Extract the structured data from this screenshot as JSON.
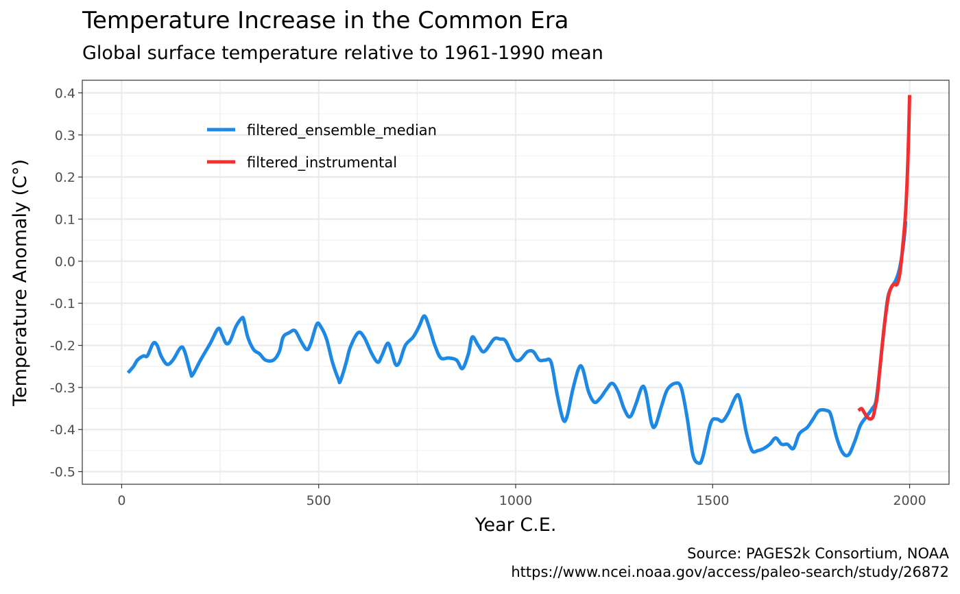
{
  "chart_data": {
    "type": "line",
    "title": "Temperature Increase in the Common Era",
    "subtitle": "Global surface temperature relative to 1961-1990 mean",
    "xlabel": "Year C.E.",
    "ylabel": "Temperature Anomaly (C°)",
    "caption_line1": "Source: PAGES2k Consortium, NOAA",
    "caption_line2": "https://www.ncei.noaa.gov/access/paleo-search/study/26872",
    "xlim": [
      -100,
      2100
    ],
    "ylim": [
      -0.53,
      0.43
    ],
    "x_ticks": [
      0,
      500,
      1000,
      1500,
      2000
    ],
    "x_tick_labels": [
      "0",
      "500",
      "1000",
      "1500",
      "2000"
    ],
    "y_ticks": [
      0.4,
      0.3,
      0.2,
      0.1,
      0.0,
      -0.1,
      -0.2,
      -0.3,
      -0.4,
      -0.5
    ],
    "y_tick_labels": [
      "0.4",
      "0.3",
      "0.2",
      "0.1",
      "0.0",
      "-0.1",
      "-0.2",
      "-0.3",
      "-0.4",
      "-0.5"
    ],
    "grid": true,
    "legend_position": "top-left inside",
    "series": [
      {
        "name": "filtered_ensemble_median",
        "color": "#1e88e5",
        "points": [
          [
            16,
            -0.265
          ],
          [
            30,
            -0.25
          ],
          [
            40,
            -0.235
          ],
          [
            55,
            -0.225
          ],
          [
            65,
            -0.225
          ],
          [
            80,
            -0.195
          ],
          [
            90,
            -0.2
          ],
          [
            100,
            -0.225
          ],
          [
            115,
            -0.245
          ],
          [
            130,
            -0.235
          ],
          [
            150,
            -0.205
          ],
          [
            160,
            -0.215
          ],
          [
            175,
            -0.265
          ],
          [
            180,
            -0.27
          ],
          [
            200,
            -0.235
          ],
          [
            225,
            -0.195
          ],
          [
            245,
            -0.16
          ],
          [
            255,
            -0.175
          ],
          [
            265,
            -0.195
          ],
          [
            275,
            -0.19
          ],
          [
            290,
            -0.155
          ],
          [
            305,
            -0.135
          ],
          [
            310,
            -0.14
          ],
          [
            320,
            -0.18
          ],
          [
            335,
            -0.21
          ],
          [
            350,
            -0.22
          ],
          [
            365,
            -0.235
          ],
          [
            385,
            -0.235
          ],
          [
            400,
            -0.215
          ],
          [
            410,
            -0.18
          ],
          [
            425,
            -0.17
          ],
          [
            440,
            -0.165
          ],
          [
            455,
            -0.19
          ],
          [
            470,
            -0.21
          ],
          [
            480,
            -0.195
          ],
          [
            495,
            -0.15
          ],
          [
            505,
            -0.155
          ],
          [
            520,
            -0.185
          ],
          [
            535,
            -0.24
          ],
          [
            550,
            -0.28
          ],
          [
            555,
            -0.285
          ],
          [
            570,
            -0.24
          ],
          [
            580,
            -0.205
          ],
          [
            600,
            -0.17
          ],
          [
            615,
            -0.18
          ],
          [
            635,
            -0.22
          ],
          [
            650,
            -0.24
          ],
          [
            660,
            -0.225
          ],
          [
            675,
            -0.195
          ],
          [
            685,
            -0.215
          ],
          [
            695,
            -0.245
          ],
          [
            705,
            -0.24
          ],
          [
            720,
            -0.2
          ],
          [
            740,
            -0.18
          ],
          [
            755,
            -0.155
          ],
          [
            768,
            -0.13
          ],
          [
            780,
            -0.155
          ],
          [
            795,
            -0.2
          ],
          [
            810,
            -0.23
          ],
          [
            830,
            -0.23
          ],
          [
            850,
            -0.235
          ],
          [
            865,
            -0.255
          ],
          [
            880,
            -0.22
          ],
          [
            890,
            -0.18
          ],
          [
            905,
            -0.2
          ],
          [
            920,
            -0.215
          ],
          [
            945,
            -0.185
          ],
          [
            960,
            -0.185
          ],
          [
            975,
            -0.19
          ],
          [
            995,
            -0.23
          ],
          [
            1010,
            -0.235
          ],
          [
            1030,
            -0.215
          ],
          [
            1045,
            -0.215
          ],
          [
            1060,
            -0.235
          ],
          [
            1075,
            -0.235
          ],
          [
            1090,
            -0.24
          ],
          [
            1105,
            -0.315
          ],
          [
            1120,
            -0.375
          ],
          [
            1130,
            -0.37
          ],
          [
            1145,
            -0.305
          ],
          [
            1160,
            -0.255
          ],
          [
            1170,
            -0.255
          ],
          [
            1185,
            -0.31
          ],
          [
            1200,
            -0.335
          ],
          [
            1215,
            -0.325
          ],
          [
            1230,
            -0.305
          ],
          [
            1245,
            -0.29
          ],
          [
            1260,
            -0.31
          ],
          [
            1275,
            -0.35
          ],
          [
            1290,
            -0.37
          ],
          [
            1305,
            -0.34
          ],
          [
            1320,
            -0.3
          ],
          [
            1330,
            -0.31
          ],
          [
            1345,
            -0.385
          ],
          [
            1355,
            -0.39
          ],
          [
            1370,
            -0.345
          ],
          [
            1385,
            -0.305
          ],
          [
            1405,
            -0.29
          ],
          [
            1420,
            -0.3
          ],
          [
            1435,
            -0.37
          ],
          [
            1450,
            -0.46
          ],
          [
            1465,
            -0.48
          ],
          [
            1475,
            -0.465
          ],
          [
            1495,
            -0.385
          ],
          [
            1510,
            -0.375
          ],
          [
            1525,
            -0.38
          ],
          [
            1540,
            -0.36
          ],
          [
            1560,
            -0.32
          ],
          [
            1570,
            -0.33
          ],
          [
            1585,
            -0.405
          ],
          [
            1600,
            -0.45
          ],
          [
            1615,
            -0.45
          ],
          [
            1630,
            -0.445
          ],
          [
            1645,
            -0.435
          ],
          [
            1660,
            -0.42
          ],
          [
            1675,
            -0.435
          ],
          [
            1690,
            -0.435
          ],
          [
            1705,
            -0.445
          ],
          [
            1720,
            -0.41
          ],
          [
            1740,
            -0.395
          ],
          [
            1755,
            -0.375
          ],
          [
            1770,
            -0.355
          ],
          [
            1790,
            -0.355
          ],
          [
            1800,
            -0.365
          ],
          [
            1815,
            -0.42
          ],
          [
            1830,
            -0.455
          ],
          [
            1845,
            -0.46
          ],
          [
            1860,
            -0.43
          ],
          [
            1875,
            -0.39
          ],
          [
            1890,
            -0.37
          ],
          [
            1905,
            -0.35
          ],
          [
            1915,
            -0.33
          ],
          [
            1925,
            -0.25
          ],
          [
            1935,
            -0.16
          ],
          [
            1945,
            -0.085
          ],
          [
            1955,
            -0.06
          ],
          [
            1965,
            -0.045
          ],
          [
            1975,
            -0.015
          ],
          [
            1985,
            0.045
          ],
          [
            1990,
            0.095
          ]
        ]
      },
      {
        "name": "filtered_instrumental",
        "color": "#f03030",
        "points": [
          [
            1870,
            -0.355
          ],
          [
            1878,
            -0.35
          ],
          [
            1885,
            -0.36
          ],
          [
            1892,
            -0.37
          ],
          [
            1900,
            -0.375
          ],
          [
            1907,
            -0.37
          ],
          [
            1912,
            -0.35
          ],
          [
            1918,
            -0.32
          ],
          [
            1925,
            -0.25
          ],
          [
            1935,
            -0.16
          ],
          [
            1945,
            -0.09
          ],
          [
            1952,
            -0.065
          ],
          [
            1960,
            -0.055
          ],
          [
            1968,
            -0.055
          ],
          [
            1975,
            -0.03
          ],
          [
            1982,
            0.03
          ],
          [
            1990,
            0.12
          ],
          [
            1996,
            0.25
          ],
          [
            2000,
            0.395
          ]
        ]
      }
    ]
  }
}
